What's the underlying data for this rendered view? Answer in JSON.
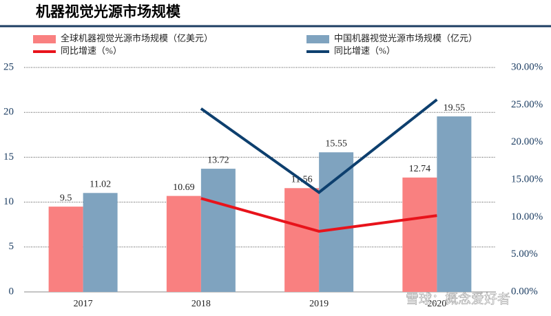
{
  "chart_data": {
    "type": "bar-line",
    "title": "机器视觉光源市场规模",
    "watermark": "雪球：概念爱好者",
    "legend": "top",
    "grid": true,
    "categories": [
      "2017",
      "2018",
      "2019",
      "2020"
    ],
    "series": [
      {
        "name": "全球机器视觉光源市场规模（亿美元）",
        "type": "bar",
        "color": "#f98080",
        "values": [
          9.5,
          10.69,
          11.56,
          12.74
        ]
      },
      {
        "name": "中国机器视觉光源市场规模（亿元）",
        "type": "bar",
        "color": "#7fa3bf",
        "values": [
          11.02,
          13.72,
          15.55,
          19.55
        ]
      },
      {
        "name": "同比增速（%）",
        "type": "line",
        "axis": "y2",
        "color": "#e8131b",
        "values": [
          null,
          12.5,
          8.1,
          10.2
        ]
      },
      {
        "name": "同比增速（%）",
        "type": "line",
        "axis": "y2",
        "color": "#0d3f6e",
        "values": [
          null,
          24.5,
          13.3,
          25.7
        ]
      }
    ],
    "ylim": [
      0,
      25
    ],
    "yticks": [
      0,
      5,
      10,
      15,
      20,
      25
    ],
    "y2lim": [
      0,
      30
    ],
    "y2ticks": [
      {
        "value": 0,
        "label": "0.00%"
      },
      {
        "value": 5,
        "label": "5.00%"
      },
      {
        "value": 10,
        "label": "10.00%"
      },
      {
        "value": 15,
        "label": "15.00%"
      },
      {
        "value": 20,
        "label": "20.00%"
      },
      {
        "value": 25,
        "label": "25.00%"
      },
      {
        "value": 30,
        "label": "30.00%"
      }
    ]
  }
}
